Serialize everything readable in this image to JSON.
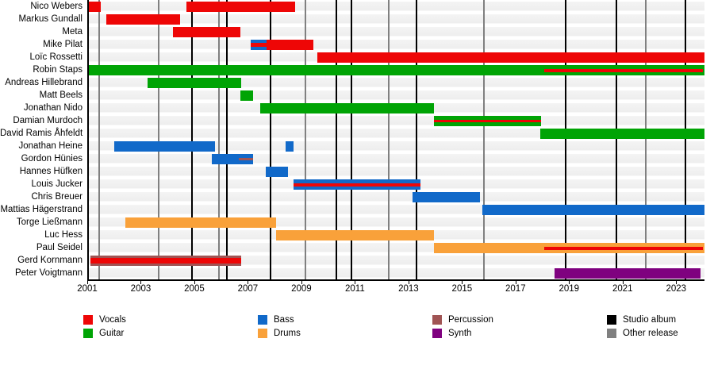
{
  "colors": {
    "vocals": "#ee0606",
    "guitar": "#00a405",
    "bass": "#1169c9",
    "drums": "#f9a13a",
    "percussion": "#a05454",
    "synth": "#7f017f",
    "studio_album": "#000000",
    "other_release": "#808080"
  },
  "chart_data": {
    "type": "timeline",
    "title": "",
    "x_axis": {
      "start": 2001,
      "end": 2024,
      "ticks": [
        2001,
        2003,
        2005,
        2007,
        2009,
        2011,
        2013,
        2015,
        2017,
        2019,
        2021,
        2023
      ]
    },
    "releases": {
      "studio_albums": [
        2004.85,
        2006.15,
        2007.8,
        2010.25,
        2010.8,
        2013.25,
        2018.8,
        2020.7,
        2023.3
      ],
      "other_releases": [
        2001.4,
        2003.6,
        2005.85,
        2009.1,
        2012.2,
        2015.75,
        2021.8
      ]
    },
    "members": [
      {
        "name": "Nico Webers",
        "bars": [
          {
            "start": 2001.0,
            "end": 2001.45,
            "role": "vocals"
          },
          {
            "start": 2004.65,
            "end": 2008.7,
            "role": "vocals"
          }
        ]
      },
      {
        "name": "Markus Gundall",
        "bars": [
          {
            "start": 2001.65,
            "end": 2004.4,
            "role": "vocals"
          }
        ]
      },
      {
        "name": "Meta",
        "bars": [
          {
            "start": 2004.15,
            "end": 2006.65,
            "role": "vocals"
          }
        ]
      },
      {
        "name": "Mike Pilat",
        "bars": [
          {
            "start": 2007.05,
            "end": 2007.65,
            "role": "bass",
            "stripe": {
              "role": "vocals",
              "thickness": 5
            }
          },
          {
            "start": 2007.65,
            "end": 2009.4,
            "role": "vocals"
          }
        ]
      },
      {
        "name": "Loïc Rossetti",
        "bars": [
          {
            "start": 2009.55,
            "end": 2024.0,
            "role": "vocals"
          }
        ]
      },
      {
        "name": "Robin Staps",
        "bars": [
          {
            "start": 2001.0,
            "end": 2024.0,
            "role": "guitar",
            "stripe": {
              "role": "vocals",
              "start": 2018.0,
              "end": 2023.95,
              "thickness": 4
            }
          }
        ]
      },
      {
        "name": "Andreas Hillebrand",
        "bars": [
          {
            "start": 2003.2,
            "end": 2006.7,
            "role": "guitar"
          }
        ]
      },
      {
        "name": "Matt Beels",
        "bars": [
          {
            "start": 2006.65,
            "end": 2007.15,
            "role": "guitar"
          }
        ]
      },
      {
        "name": "Jonathan Nido",
        "bars": [
          {
            "start": 2007.4,
            "end": 2013.9,
            "role": "guitar"
          }
        ]
      },
      {
        "name": "Damian Murdoch",
        "bars": [
          {
            "start": 2013.9,
            "end": 2017.9,
            "role": "guitar",
            "stripe": {
              "role": "vocals",
              "thickness": 3
            }
          }
        ]
      },
      {
        "name": "David Ramis Åhfeldt",
        "bars": [
          {
            "start": 2017.85,
            "end": 2024.0,
            "role": "guitar"
          }
        ]
      },
      {
        "name": "Jonathan Heine",
        "bars": [
          {
            "start": 2001.95,
            "end": 2005.7,
            "role": "bass"
          },
          {
            "start": 2008.35,
            "end": 2008.65,
            "role": "bass"
          }
        ]
      },
      {
        "name": "Gordon Hünies",
        "bars": [
          {
            "start": 2005.6,
            "end": 2007.15,
            "role": "bass",
            "stripe": {
              "role": "percussion",
              "start": 2006.6,
              "end": 2007.15,
              "thickness": 3
            }
          }
        ]
      },
      {
        "name": "Hannes Hüfken",
        "bars": [
          {
            "start": 2007.6,
            "end": 2008.45,
            "role": "bass"
          }
        ]
      },
      {
        "name": "Louis Jucker",
        "bars": [
          {
            "start": 2008.65,
            "end": 2013.4,
            "role": "bass",
            "stripe": {
              "role": "vocals",
              "thickness": 4
            }
          }
        ]
      },
      {
        "name": "Chris Breuer",
        "bars": [
          {
            "start": 2013.1,
            "end": 2015.6,
            "role": "bass"
          }
        ]
      },
      {
        "name": "Mattias Hägerstrand",
        "bars": [
          {
            "start": 2015.7,
            "end": 2024.0,
            "role": "bass"
          }
        ]
      },
      {
        "name": "Torge Ließmann",
        "bars": [
          {
            "start": 2002.35,
            "end": 2008.0,
            "role": "drums"
          }
        ]
      },
      {
        "name": "Luc Hess",
        "bars": [
          {
            "start": 2008.0,
            "end": 2013.9,
            "role": "drums"
          }
        ]
      },
      {
        "name": "Paul Seidel",
        "bars": [
          {
            "start": 2013.9,
            "end": 2024.0,
            "role": "drums",
            "stripe": {
              "role": "vocals",
              "start": 2018.0,
              "end": 2023.95,
              "thickness": 4
            }
          }
        ]
      },
      {
        "name": "Gerd Kornmann",
        "bars": [
          {
            "start": 2001.05,
            "end": 2006.7,
            "role": "percussion",
            "stripe": {
              "role": "vocals",
              "thickness": 7
            }
          }
        ]
      },
      {
        "name": "Peter Voigtmann",
        "bars": [
          {
            "start": 2018.4,
            "end": 2023.85,
            "role": "synth"
          }
        ]
      }
    ],
    "legend": {
      "columns": [
        [
          {
            "label": "Vocals",
            "role": "vocals"
          },
          {
            "label": "Guitar",
            "role": "guitar"
          }
        ],
        [
          {
            "label": "Bass",
            "role": "bass"
          },
          {
            "label": "Drums",
            "role": "drums"
          }
        ],
        [
          {
            "label": "Percussion",
            "role": "percussion"
          },
          {
            "label": "Synth",
            "role": "synth"
          }
        ],
        [
          {
            "label": "Studio album",
            "role": "studio_album"
          },
          {
            "label": "Other release",
            "role": "other_release"
          }
        ]
      ]
    }
  }
}
